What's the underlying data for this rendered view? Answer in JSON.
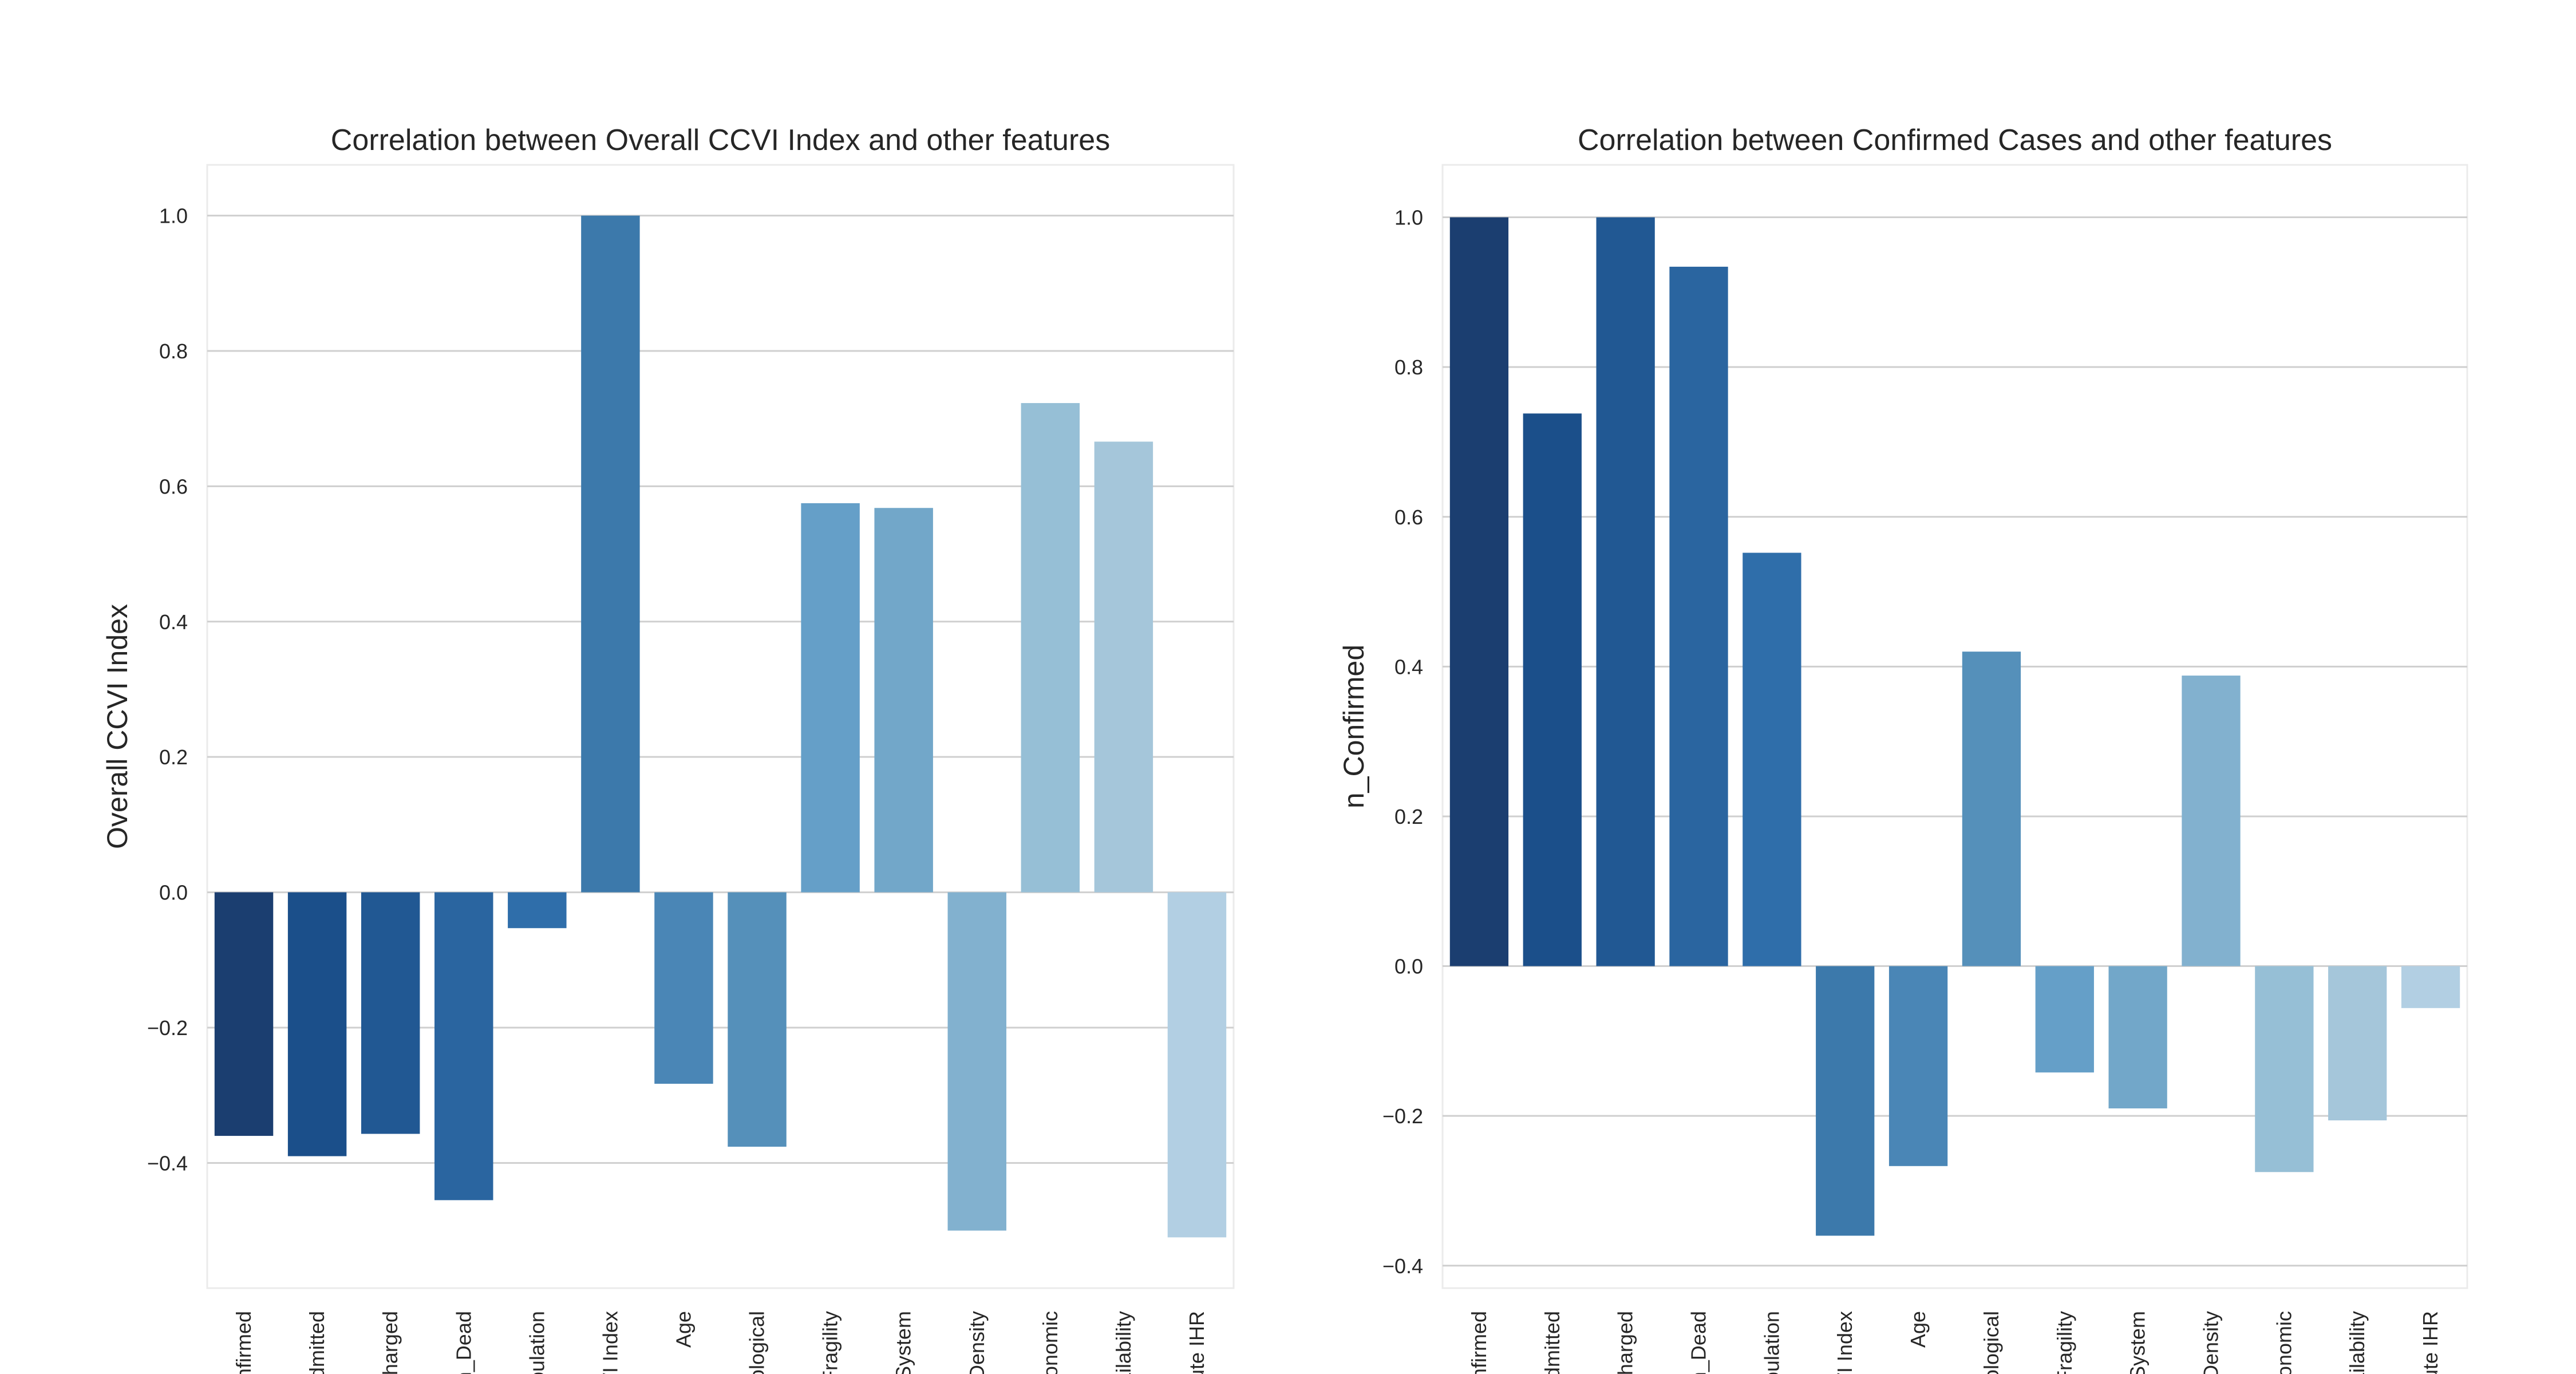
{
  "chart_data": [
    {
      "type": "bar",
      "title": "Correlation between Overall CCVI Index and other features",
      "xlabel": "",
      "ylabel": "Overall CCVI Index",
      "ylim": [
        -0.585,
        1.075
      ],
      "yticks": [
        -0.4,
        -0.2,
        0.0,
        0.2,
        0.4,
        0.6,
        0.8,
        1.0
      ],
      "ytick_labels": [
        "−0.4",
        "−0.2",
        "0.0",
        "0.2",
        "0.4",
        "0.6",
        "0.8",
        "1.0"
      ],
      "grid": true,
      "categories": [
        "onfirmed",
        "dmitted",
        "charged",
        "n_Dead",
        "pulation",
        "VI Index",
        "Age",
        "iological",
        "Fragility",
        "System",
        "Density",
        "conomic",
        "ailability",
        "cute IHR"
      ],
      "values": [
        -0.36,
        -0.39,
        -0.357,
        -0.455,
        -0.053,
        1.0,
        -0.283,
        -0.376,
        0.575,
        0.568,
        -0.5,
        0.723,
        0.666,
        -0.51
      ],
      "colors": [
        "#1b3e70",
        "#1b4f8a",
        "#215893",
        "#2a65a0",
        "#2f6eaa",
        "#3c79ab",
        "#4a86b6",
        "#5590ba",
        "#659fc8",
        "#72a7c9",
        "#82b1cf",
        "#96bfd6",
        "#a5c6da",
        "#b2cfe3"
      ]
    },
    {
      "type": "bar",
      "title": "Correlation between Confirmed Cases and other features",
      "xlabel": "",
      "ylabel": "n_Confirmed",
      "ylim": [
        -0.43,
        1.07
      ],
      "yticks": [
        -0.4,
        -0.2,
        0.0,
        0.2,
        0.4,
        0.6,
        0.8,
        1.0
      ],
      "ytick_labels": [
        "−0.4",
        "−0.2",
        "0.0",
        "0.2",
        "0.4",
        "0.6",
        "0.8",
        "1.0"
      ],
      "grid": true,
      "categories": [
        "onfirmed",
        "dmitted",
        "charged",
        "n_Dead",
        "pulation",
        "VI Index",
        "Age",
        "iological",
        "Fragility",
        "System",
        "Density",
        "conomic",
        "ailability",
        "cute IHR"
      ],
      "values": [
        1.0,
        0.738,
        1.0,
        0.934,
        0.552,
        -0.36,
        -0.267,
        0.42,
        -0.142,
        -0.19,
        0.388,
        -0.275,
        -0.206,
        -0.056
      ],
      "colors": [
        "#1b3e70",
        "#1b4f8a",
        "#215893",
        "#2a65a0",
        "#2f6eaa",
        "#3c79ab",
        "#4a86b6",
        "#5590ba",
        "#659fc8",
        "#72a7c9",
        "#82b1cf",
        "#96bfd6",
        "#a5c6da",
        "#b2cfe3"
      ]
    }
  ]
}
